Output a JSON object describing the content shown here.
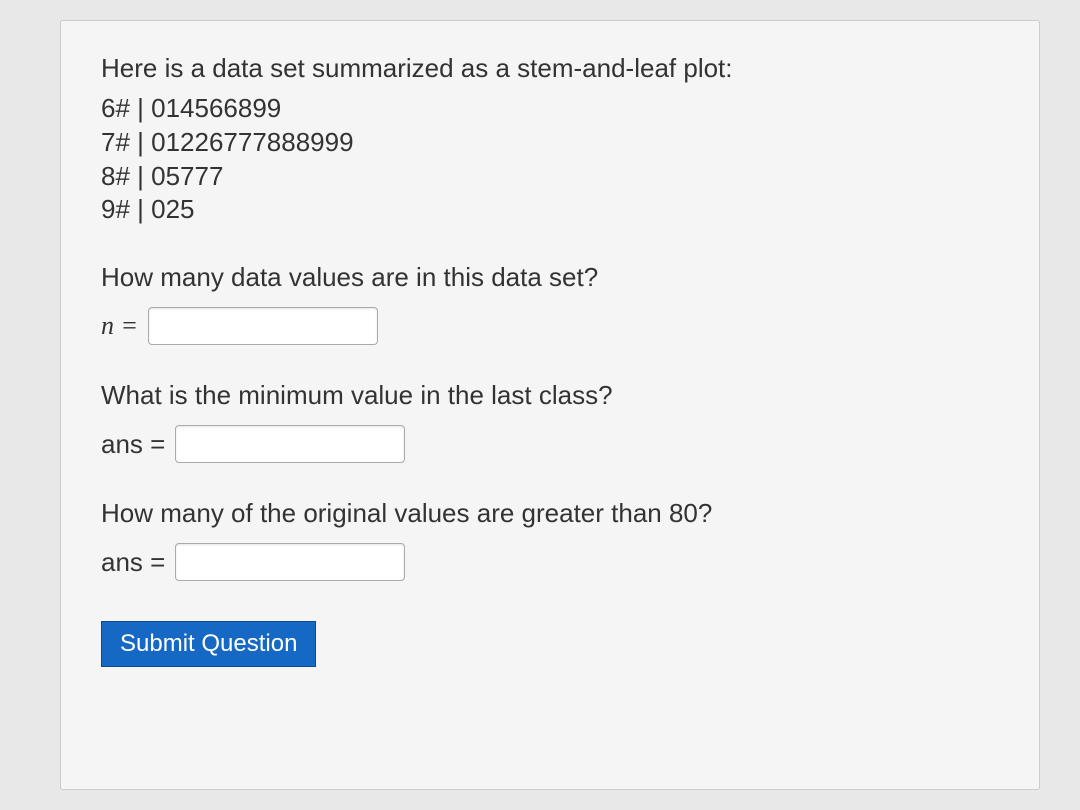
{
  "question": {
    "intro": "Here is a data set summarized as a stem-and-leaf plot:",
    "stem_leaf": [
      "6# | 014566899",
      "7# | 01226777888999",
      "8# | 05777",
      "9# | 025"
    ],
    "prompts": [
      {
        "text": "How many data values are in this data set?",
        "label": "n =",
        "label_italic": true
      },
      {
        "text": "What is the minimum value in the last class?",
        "label": "ans =",
        "label_italic": false
      },
      {
        "text": "How many of the original values are greater than 80?",
        "label": "ans =",
        "label_italic": false
      }
    ]
  },
  "submit_label": "Submit Question",
  "colors": {
    "background": "#e8e8e8",
    "panel_bg": "#f5f5f5",
    "panel_border": "#cccccc",
    "text": "#333333",
    "input_border": "#aaaaaa",
    "button_bg": "#1568c4",
    "button_text": "#ffffff",
    "button_border": "#0d4a8f"
  }
}
